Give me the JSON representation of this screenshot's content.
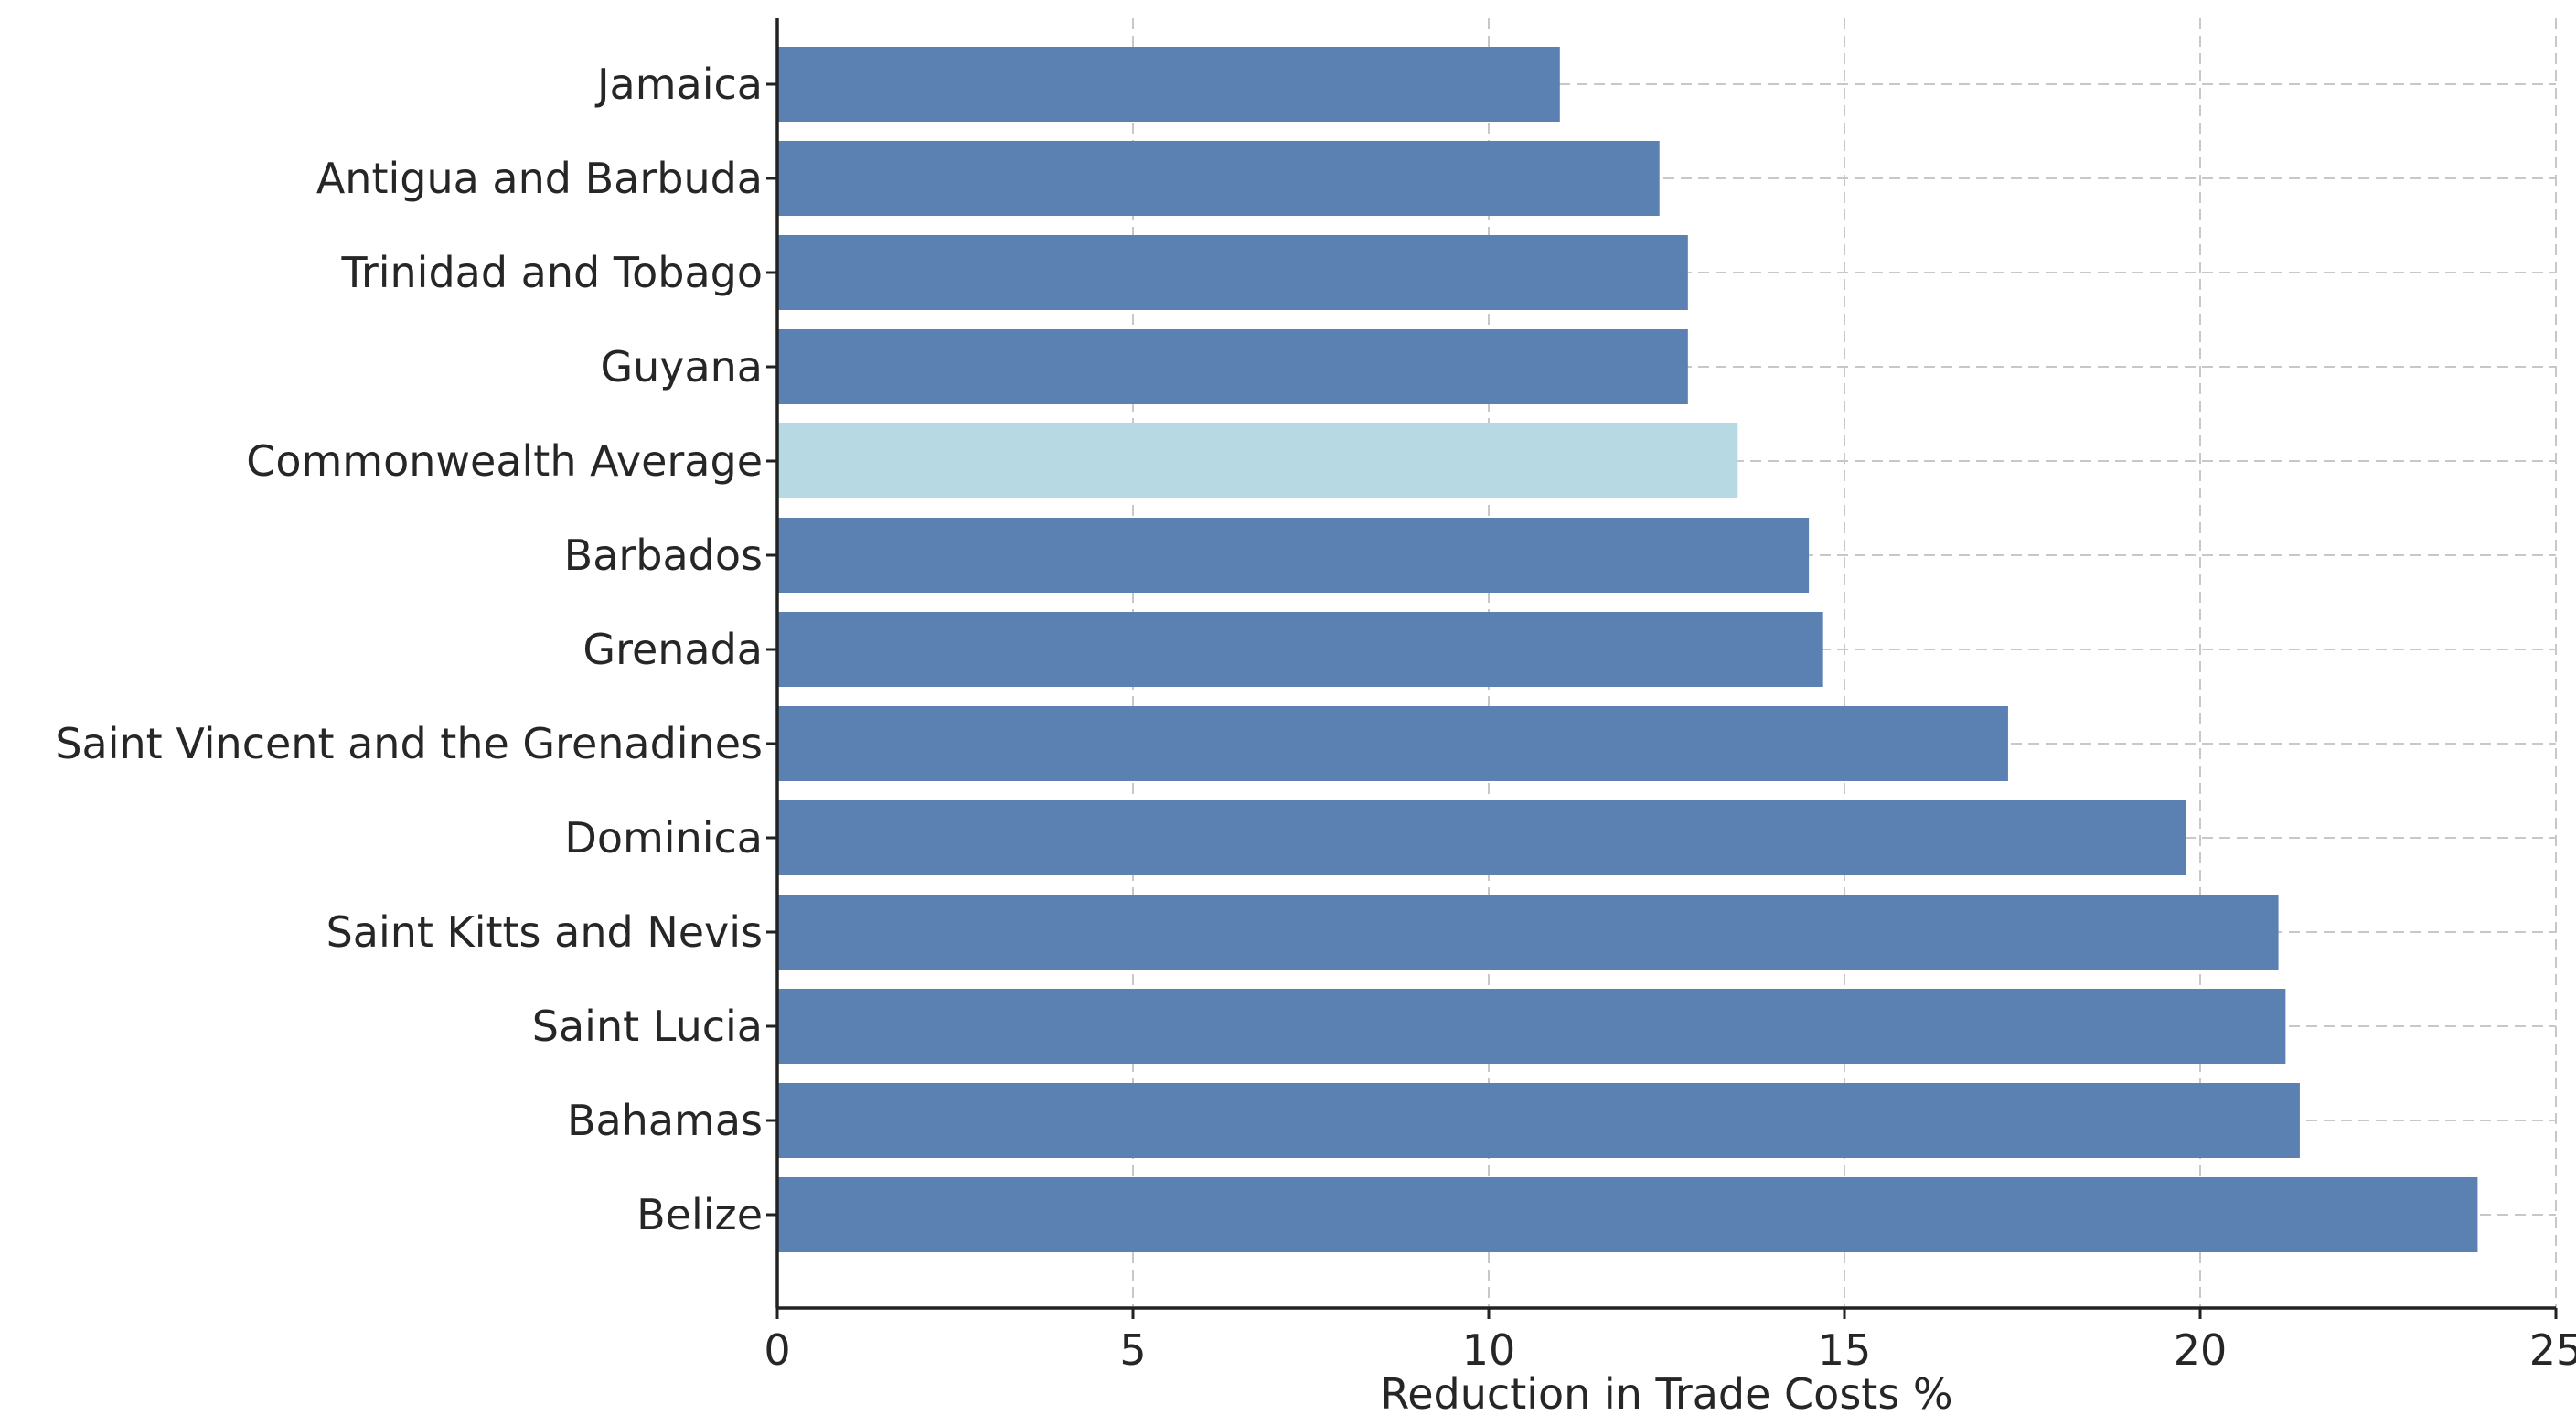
{
  "chart_data": {
    "type": "bar",
    "orientation": "horizontal",
    "title": "",
    "xlabel": "Reduction in Trade Costs %",
    "ylabel": "",
    "xlim": [
      0,
      25
    ],
    "xticks": [
      0,
      5,
      10,
      15,
      20,
      25
    ],
    "grid": true,
    "categories": [
      "Jamaica",
      "Antigua and Barbuda",
      "Trinidad and Tobago",
      "Guyana",
      "Commonwealth Average",
      "Barbados",
      "Grenada",
      "Saint Vincent and the Grenadines",
      "Dominica",
      "Saint Kitts and Nevis",
      "Saint Lucia",
      "Bahamas",
      "Belize"
    ],
    "values": [
      11.0,
      12.4,
      12.8,
      12.8,
      13.5,
      14.5,
      14.7,
      17.3,
      19.8,
      21.1,
      21.2,
      21.4,
      23.9
    ],
    "colors": {
      "default": "#5a81b1",
      "highlight": "#b6d9e3"
    },
    "highlight_category": "Commonwealth Average"
  }
}
